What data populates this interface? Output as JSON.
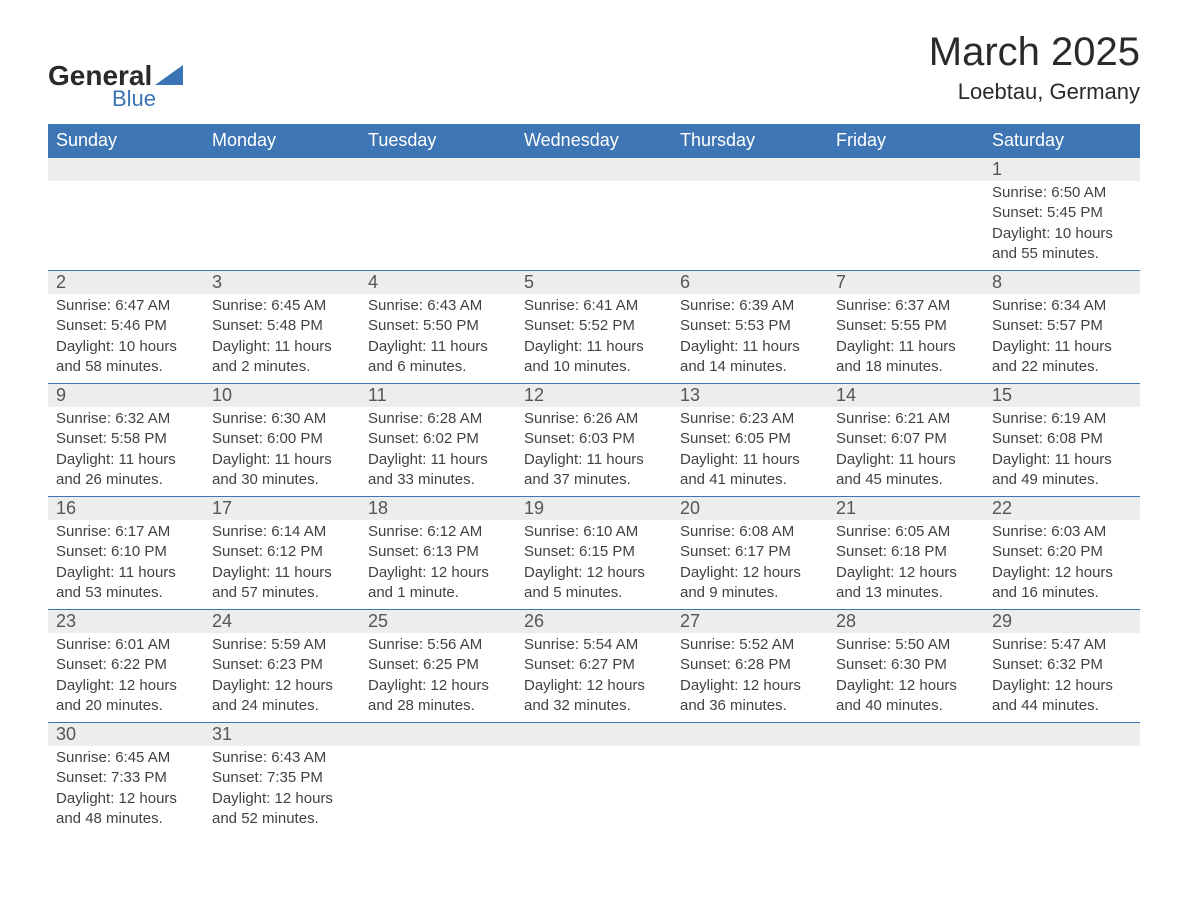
{
  "logo": {
    "text_general": "General",
    "text_blue": "Blue"
  },
  "title": {
    "month_year": "March 2025",
    "location": "Loebtau, Germany"
  },
  "colors": {
    "header_bg": "#3e76b5",
    "header_text": "#ffffff",
    "daynum_bg": "#ededed",
    "border": "#3e76b5",
    "body_text": "#424242",
    "logo_blue": "#3b74b5",
    "page_bg": "#ffffff"
  },
  "calendar": {
    "days_of_week": [
      "Sunday",
      "Monday",
      "Tuesday",
      "Wednesday",
      "Thursday",
      "Friday",
      "Saturday"
    ],
    "weeks": [
      [
        null,
        null,
        null,
        null,
        null,
        null,
        {
          "n": "1",
          "sr": "6:50 AM",
          "ss": "5:45 PM",
          "dl": "10 hours and 55 minutes."
        }
      ],
      [
        {
          "n": "2",
          "sr": "6:47 AM",
          "ss": "5:46 PM",
          "dl": "10 hours and 58 minutes."
        },
        {
          "n": "3",
          "sr": "6:45 AM",
          "ss": "5:48 PM",
          "dl": "11 hours and 2 minutes."
        },
        {
          "n": "4",
          "sr": "6:43 AM",
          "ss": "5:50 PM",
          "dl": "11 hours and 6 minutes."
        },
        {
          "n": "5",
          "sr": "6:41 AM",
          "ss": "5:52 PM",
          "dl": "11 hours and 10 minutes."
        },
        {
          "n": "6",
          "sr": "6:39 AM",
          "ss": "5:53 PM",
          "dl": "11 hours and 14 minutes."
        },
        {
          "n": "7",
          "sr": "6:37 AM",
          "ss": "5:55 PM",
          "dl": "11 hours and 18 minutes."
        },
        {
          "n": "8",
          "sr": "6:34 AM",
          "ss": "5:57 PM",
          "dl": "11 hours and 22 minutes."
        }
      ],
      [
        {
          "n": "9",
          "sr": "6:32 AM",
          "ss": "5:58 PM",
          "dl": "11 hours and 26 minutes."
        },
        {
          "n": "10",
          "sr": "6:30 AM",
          "ss": "6:00 PM",
          "dl": "11 hours and 30 minutes."
        },
        {
          "n": "11",
          "sr": "6:28 AM",
          "ss": "6:02 PM",
          "dl": "11 hours and 33 minutes."
        },
        {
          "n": "12",
          "sr": "6:26 AM",
          "ss": "6:03 PM",
          "dl": "11 hours and 37 minutes."
        },
        {
          "n": "13",
          "sr": "6:23 AM",
          "ss": "6:05 PM",
          "dl": "11 hours and 41 minutes."
        },
        {
          "n": "14",
          "sr": "6:21 AM",
          "ss": "6:07 PM",
          "dl": "11 hours and 45 minutes."
        },
        {
          "n": "15",
          "sr": "6:19 AM",
          "ss": "6:08 PM",
          "dl": "11 hours and 49 minutes."
        }
      ],
      [
        {
          "n": "16",
          "sr": "6:17 AM",
          "ss": "6:10 PM",
          "dl": "11 hours and 53 minutes."
        },
        {
          "n": "17",
          "sr": "6:14 AM",
          "ss": "6:12 PM",
          "dl": "11 hours and 57 minutes."
        },
        {
          "n": "18",
          "sr": "6:12 AM",
          "ss": "6:13 PM",
          "dl": "12 hours and 1 minute."
        },
        {
          "n": "19",
          "sr": "6:10 AM",
          "ss": "6:15 PM",
          "dl": "12 hours and 5 minutes."
        },
        {
          "n": "20",
          "sr": "6:08 AM",
          "ss": "6:17 PM",
          "dl": "12 hours and 9 minutes."
        },
        {
          "n": "21",
          "sr": "6:05 AM",
          "ss": "6:18 PM",
          "dl": "12 hours and 13 minutes."
        },
        {
          "n": "22",
          "sr": "6:03 AM",
          "ss": "6:20 PM",
          "dl": "12 hours and 16 minutes."
        }
      ],
      [
        {
          "n": "23",
          "sr": "6:01 AM",
          "ss": "6:22 PM",
          "dl": "12 hours and 20 minutes."
        },
        {
          "n": "24",
          "sr": "5:59 AM",
          "ss": "6:23 PM",
          "dl": "12 hours and 24 minutes."
        },
        {
          "n": "25",
          "sr": "5:56 AM",
          "ss": "6:25 PM",
          "dl": "12 hours and 28 minutes."
        },
        {
          "n": "26",
          "sr": "5:54 AM",
          "ss": "6:27 PM",
          "dl": "12 hours and 32 minutes."
        },
        {
          "n": "27",
          "sr": "5:52 AM",
          "ss": "6:28 PM",
          "dl": "12 hours and 36 minutes."
        },
        {
          "n": "28",
          "sr": "5:50 AM",
          "ss": "6:30 PM",
          "dl": "12 hours and 40 minutes."
        },
        {
          "n": "29",
          "sr": "5:47 AM",
          "ss": "6:32 PM",
          "dl": "12 hours and 44 minutes."
        }
      ],
      [
        {
          "n": "30",
          "sr": "6:45 AM",
          "ss": "7:33 PM",
          "dl": "12 hours and 48 minutes."
        },
        {
          "n": "31",
          "sr": "6:43 AM",
          "ss": "7:35 PM",
          "dl": "12 hours and 52 minutes."
        },
        null,
        null,
        null,
        null,
        null
      ]
    ],
    "labels": {
      "sunrise": "Sunrise: ",
      "sunset": "Sunset: ",
      "daylight": "Daylight: "
    },
    "typography": {
      "header_fontsize": 18,
      "daynum_fontsize": 18,
      "detail_fontsize": 15,
      "title_fontsize": 40,
      "location_fontsize": 22
    }
  }
}
